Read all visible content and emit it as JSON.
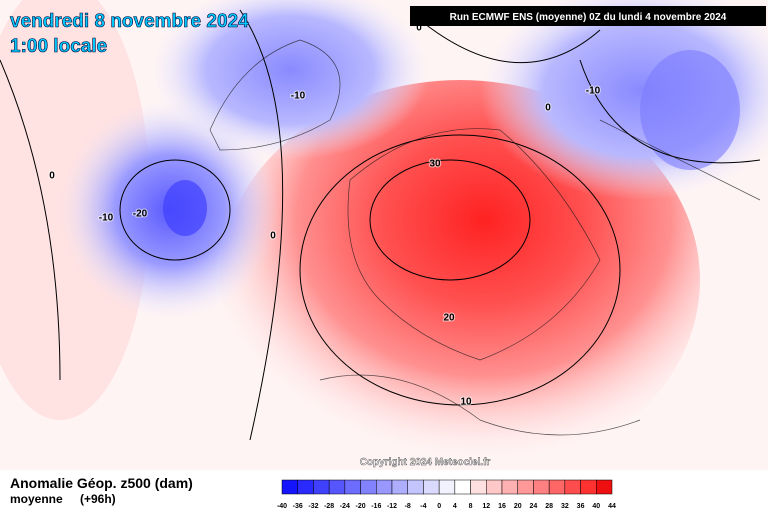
{
  "header": {
    "date": "vendredi 8 novembre 2024",
    "time": "1:00 locale",
    "run": "Run ECMWF ENS (moyenne) 0Z du lundi 4 novembre 2024"
  },
  "copyright": "Copyright 2024 Meteociel.fr",
  "footer": {
    "title": "Anomalie Géop. z500 (dam)",
    "subtitle": "moyenne",
    "lead": "(+96h)"
  },
  "contour_labels": [
    0,
    -10,
    -10,
    0,
    0,
    -10,
    -20,
    30,
    0,
    20,
    10
  ],
  "colorbar": {
    "ticks": [
      -40,
      -36,
      -32,
      -28,
      -24,
      -20,
      -16,
      -12,
      -8,
      -4,
      0,
      4,
      8,
      12,
      16,
      20,
      24,
      28,
      32,
      36,
      40,
      44
    ],
    "colors": [
      "#1414ff",
      "#2a2aff",
      "#4040ff",
      "#5656ff",
      "#6c6cff",
      "#8282ff",
      "#9898ff",
      "#aeaeff",
      "#c4c4ff",
      "#dadaff",
      "#f2f2ff",
      "#ffffff",
      "#ffe0e0",
      "#ffc8c8",
      "#ffb0b0",
      "#ff9898",
      "#ff8080",
      "#ff6666",
      "#ff4c4c",
      "#ff3232",
      "#ee1010"
    ]
  }
}
